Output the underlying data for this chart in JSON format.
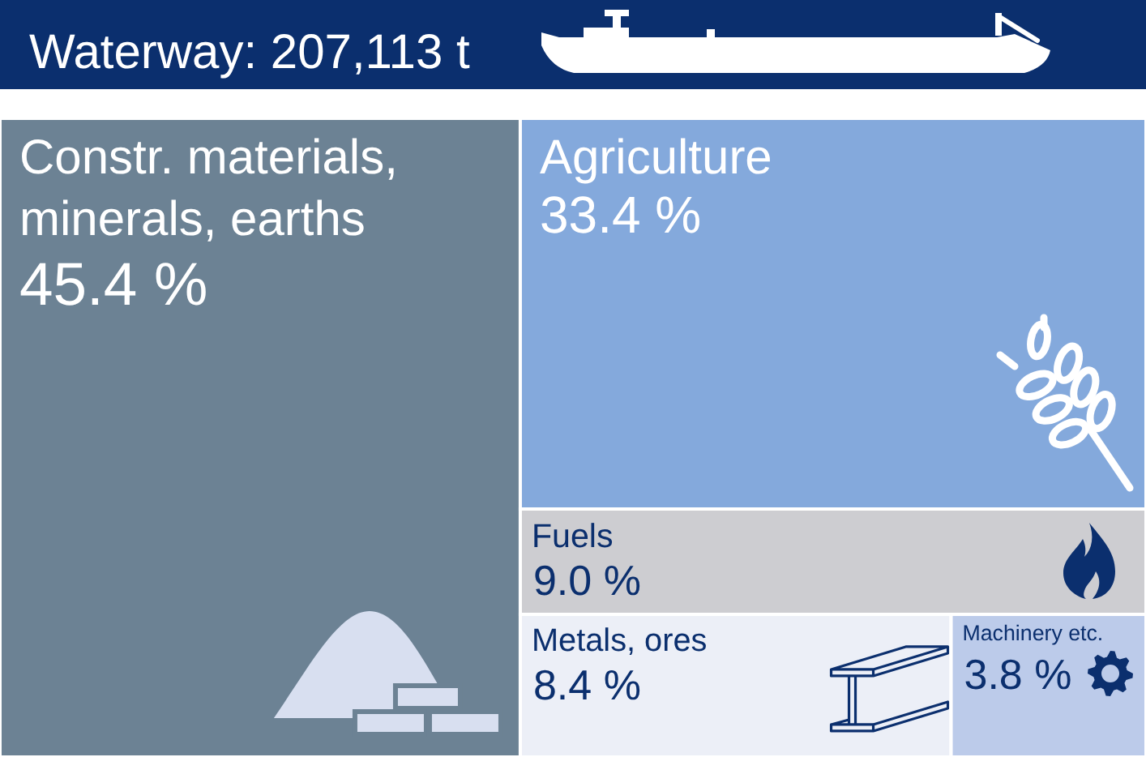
{
  "chart_data": {
    "type": "other",
    "title": "Waterway: 207,113 t",
    "categories": [
      "Constr. materials, minerals, earths",
      "Agriculture",
      "Fuels",
      "Metals, ores",
      "Machinery etc."
    ],
    "values": [
      45.4,
      33.4,
      9.0,
      8.4,
      3.8
    ],
    "colors": [
      "#6c8294",
      "#84a9dc",
      "#cdcdd1",
      "#eceff7",
      "#bccbea"
    ],
    "value_labels": [
      "45.4 %",
      "33.4 %",
      "9.0 %",
      "8.4 %",
      "3.8 %"
    ]
  }
}
